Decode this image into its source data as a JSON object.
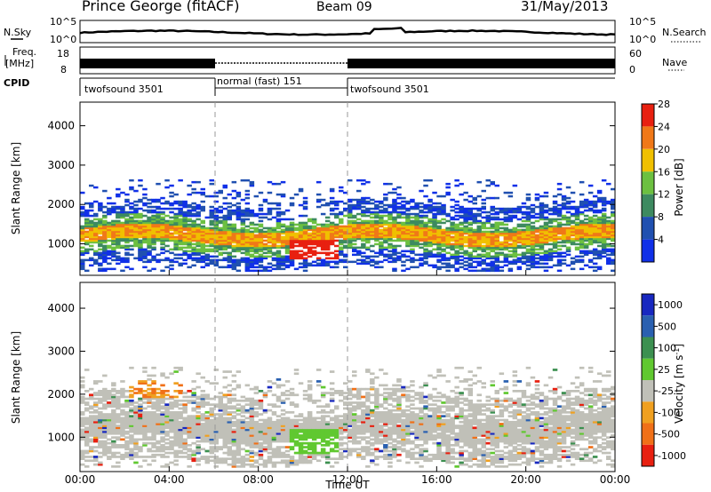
{
  "header": {
    "station": "Prince George (fitACF)",
    "beam": "Beam 09",
    "date": "31/May/2013"
  },
  "top_panels": {
    "nsky_label": "N.Sky",
    "nsky_ticks": [
      "10^5",
      "10^0"
    ],
    "nsearch_label": "N.Search",
    "nsearch_ticks": [
      "10^5",
      "10^0"
    ],
    "freq_label_1": "Freq.",
    "freq_label_2": "[MHz]",
    "freq_ticks": [
      "18",
      "8"
    ],
    "nave_label": "Nave",
    "nave_ticks": [
      "60",
      "0"
    ],
    "cpid_label": "CPID",
    "cpid_segments": [
      {
        "label": "twofsound 3501",
        "start_h": 0,
        "end_h": 6
      },
      {
        "label": "normal (fast) 151",
        "start_h": 6,
        "end_h": 12
      },
      {
        "label": "twofsound 3501",
        "start_h": 12,
        "end_h": 24
      }
    ]
  },
  "chart_data": [
    {
      "type": "heatmap",
      "name": "power",
      "ylabel": "Slant Range [km]",
      "yticks": [
        1000,
        2000,
        3000,
        4000
      ],
      "ylim": [
        200,
        4600
      ],
      "xlim": [
        0,
        24
      ],
      "colorbar": {
        "title": "Power [dB]",
        "ticks": [
          "4",
          "8",
          "12",
          "16",
          "20",
          "24",
          "28"
        ],
        "colors": [
          "#1030e8",
          "#2050b0",
          "#3d8a60",
          "#6cc040",
          "#f0c000",
          "#f07818",
          "#e82010"
        ]
      },
      "bands": [
        {
          "range_km": [
            900,
            1500
          ],
          "x_h": [
            0,
            24
          ],
          "level": "high"
        },
        {
          "range_km": [
            1500,
            2300
          ],
          "x_h": [
            0,
            24
          ],
          "level": "mid"
        },
        {
          "range_km": [
            600,
            1100
          ],
          "x_h": [
            9.3,
            11.5
          ],
          "level": "max"
        }
      ]
    },
    {
      "type": "heatmap",
      "name": "velocity",
      "ylabel": "Slant Range [km]",
      "yticks": [
        1000,
        2000,
        3000,
        4000
      ],
      "ylim": [
        200,
        4600
      ],
      "xlim": [
        0,
        24
      ],
      "colorbar": {
        "title": "Velocity  [m s",
        "title_sup": "-1",
        "title_end": "]",
        "ticks": [
          "1000",
          "500",
          "100",
          "25",
          "-25",
          "-100",
          "-500",
          "-1000"
        ],
        "colors": [
          "#1828c0",
          "#2a60b0",
          "#3c9050",
          "#60c830",
          "#c0c0b8",
          "#f0a020",
          "#f07018",
          "#e82010"
        ]
      }
    }
  ],
  "x_axis": {
    "title": "Time UT",
    "ticks": [
      "00:00",
      "04:00",
      "08:00",
      "12:00",
      "16:00",
      "20:00",
      "00:00"
    ]
  }
}
